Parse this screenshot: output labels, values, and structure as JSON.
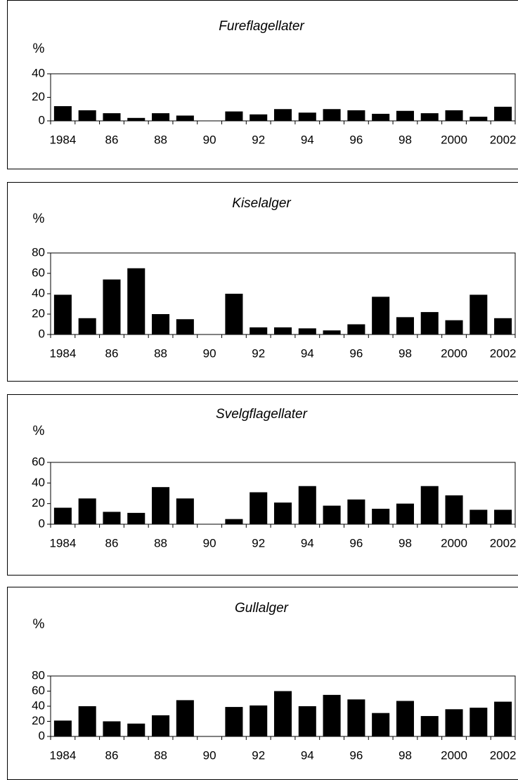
{
  "chart_data": [
    {
      "type": "bar",
      "title": "Fureflagellater",
      "y_label": "%",
      "color": "#000000",
      "categories": [
        "1984",
        null,
        "86",
        null,
        "88",
        null,
        "90",
        null,
        "92",
        null,
        "94",
        null,
        "96",
        null,
        "98",
        null,
        "2000",
        null,
        "2002"
      ],
      "values": [
        12.5,
        9,
        6.5,
        2.5,
        6.5,
        4.5,
        null,
        8,
        5.5,
        10,
        7,
        10,
        9,
        6,
        8.5,
        6.5,
        9,
        3.5,
        12
      ],
      "ylim": [
        0,
        40
      ],
      "yticks": [
        0,
        20,
        40
      ]
    },
    {
      "type": "bar",
      "title": "Kiselalger",
      "y_label": "%",
      "color": "#000000",
      "categories": [
        "1984",
        null,
        "86",
        null,
        "88",
        null,
        "90",
        null,
        "92",
        null,
        "94",
        null,
        "96",
        null,
        "98",
        null,
        "2000",
        null,
        "2002"
      ],
      "values": [
        39,
        16,
        54,
        65,
        20,
        15,
        null,
        40,
        7,
        7,
        6,
        4,
        10,
        37,
        17,
        22,
        14,
        39,
        16
      ],
      "ylim": [
        0,
        80
      ],
      "yticks": [
        0,
        20,
        40,
        60,
        80
      ]
    },
    {
      "type": "bar",
      "title": "Svelgflagellater",
      "y_label": "%",
      "color": "#000000",
      "categories": [
        "1984",
        null,
        "86",
        null,
        "88",
        null,
        "90",
        null,
        "92",
        null,
        "94",
        null,
        "96",
        null,
        "98",
        null,
        "2000",
        null,
        "2002"
      ],
      "values": [
        16,
        25,
        12,
        11,
        36,
        25,
        null,
        5,
        31,
        21,
        37,
        18,
        24,
        15,
        20,
        37,
        28,
        14,
        14
      ],
      "ylim": [
        0,
        60
      ],
      "yticks": [
        0,
        20,
        40,
        60
      ]
    },
    {
      "type": "bar",
      "title": "Gullalger",
      "y_label": "%",
      "color": "#000000",
      "categories": [
        "1984",
        null,
        "86",
        null,
        "88",
        null,
        "90",
        null,
        "92",
        null,
        "94",
        null,
        "96",
        null,
        "98",
        null,
        "2000",
        null,
        "2002"
      ],
      "values": [
        21,
        40,
        20,
        17,
        28,
        48,
        null,
        39,
        41,
        60,
        40,
        55,
        49,
        31,
        47,
        27,
        36,
        38,
        46
      ],
      "ylim": [
        0,
        80
      ],
      "yticks": [
        0,
        20,
        40,
        60,
        80
      ]
    }
  ]
}
